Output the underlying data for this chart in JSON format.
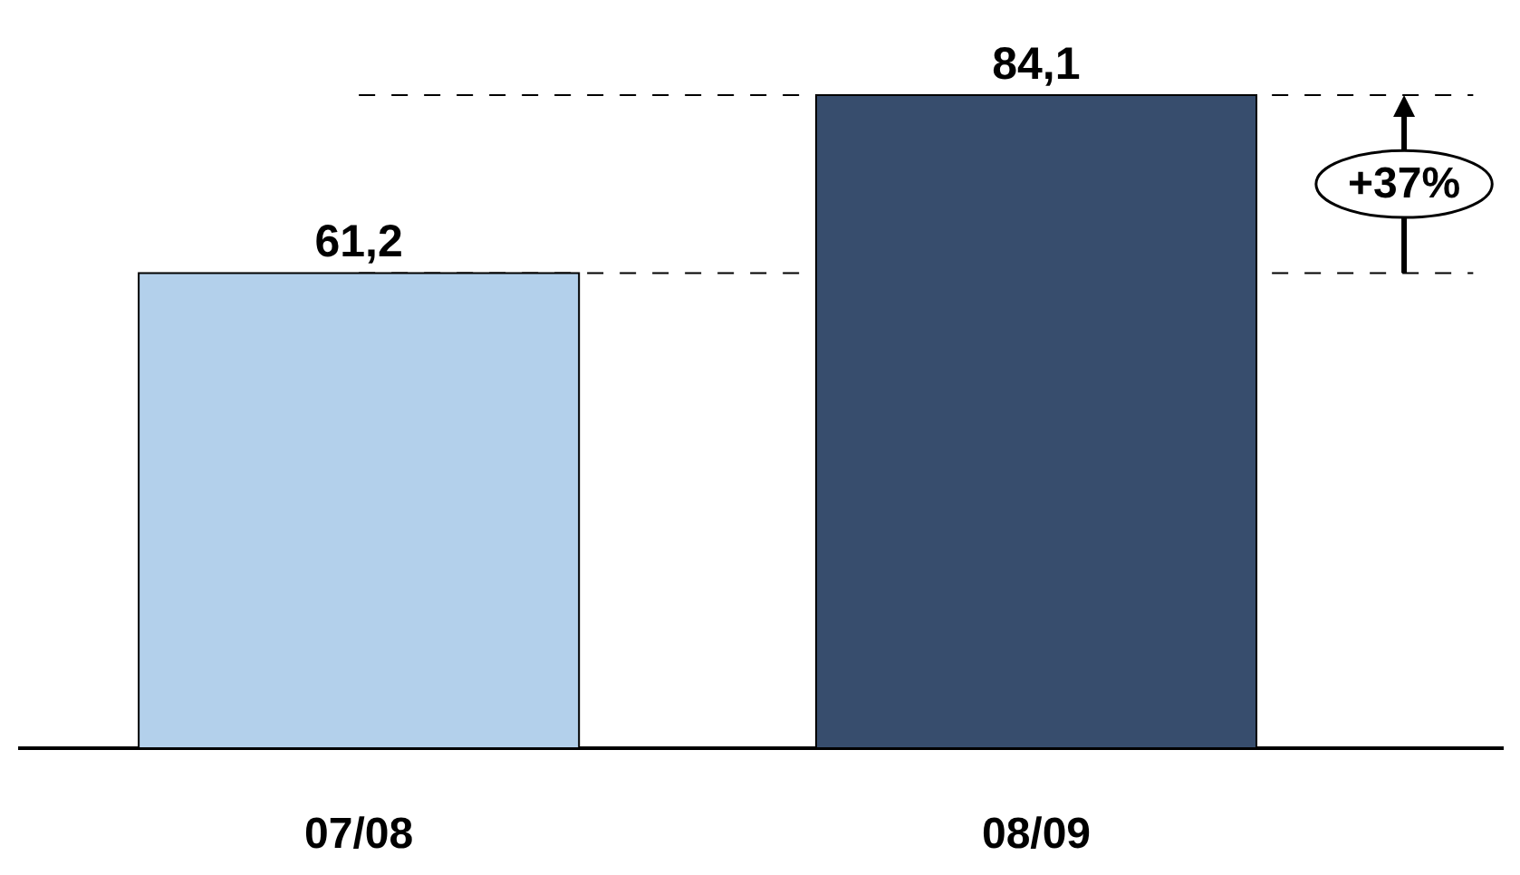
{
  "chart_data": {
    "type": "bar",
    "categories": [
      "07/08",
      "08/09"
    ],
    "values": [
      61.2,
      84.1
    ],
    "colors": [
      "#b3d0eb",
      "#374d6d"
    ],
    "value_labels": [
      "61,2",
      "84,1"
    ],
    "tick_labels": "x",
    "legend": false,
    "ref_lines": [
      {
        "axis": "y",
        "value": 61.2,
        "line_style": "dashed",
        "color": "#000000"
      },
      {
        "axis": "y",
        "value": 84.1,
        "line_style": "dashed",
        "color": "#000000"
      }
    ],
    "annotations": [
      "+37%"
    ]
  }
}
